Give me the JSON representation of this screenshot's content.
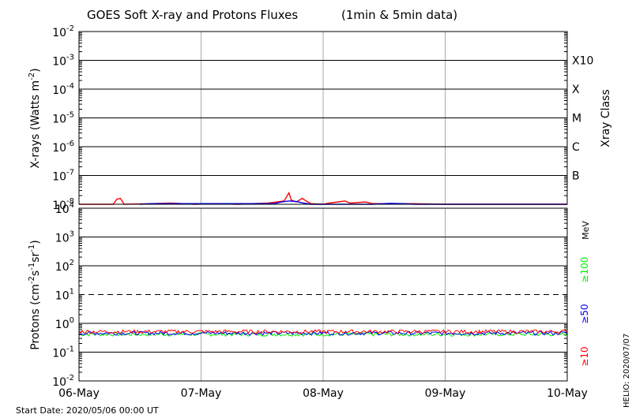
{
  "chart_data": {
    "type": "line",
    "title": "GOES Soft X-ray and Protons Fluxes",
    "subtitle": "(1min & 5min data)",
    "x_labels": [
      "06-May",
      "07-May",
      "08-May",
      "09-May",
      "10-May"
    ],
    "start_date": "Start Date: 2020/05/06 00:00 UT",
    "credit": "HELIO: 2020/07/07",
    "xray": {
      "ylabel_main": "X-rays (Watts m",
      "ylabel_sup": "-2",
      "ylabel_end": ")",
      "yscale": "log",
      "ylim": [
        1e-08,
        0.01
      ],
      "tick_base": "10",
      "tick_exponents": [
        "-2",
        "-3",
        "-4",
        "-5",
        "-6",
        "-7",
        "-8"
      ],
      "class_title": "Xray Class",
      "classes": [
        {
          "label": "X10",
          "flux": 0.001
        },
        {
          "label": "X",
          "flux": 0.0001
        },
        {
          "label": "M",
          "flux": 1e-05
        },
        {
          "label": "C",
          "flux": 1e-06
        },
        {
          "label": "B",
          "flux": 1e-07
        }
      ],
      "series": [
        {
          "color": "#ff0000",
          "points": [
            [
              0.0,
              1e-08
            ],
            [
              0.28,
              1e-08
            ],
            [
              0.31,
              1.5e-08
            ],
            [
              0.34,
              1.6e-08
            ],
            [
              0.37,
              1e-08
            ],
            [
              0.6,
              1.05e-08
            ],
            [
              0.75,
              1.1e-08
            ],
            [
              0.95,
              1e-08
            ],
            [
              1.1,
              1.05e-08
            ],
            [
              1.3,
              1e-08
            ],
            [
              1.55,
              1.1e-08
            ],
            [
              1.62,
              1.2e-08
            ],
            [
              1.68,
              1.3e-08
            ],
            [
              1.72,
              2.5e-08
            ],
            [
              1.74,
              1.4e-08
            ],
            [
              1.78,
              1.2e-08
            ],
            [
              1.83,
              1.6e-08
            ],
            [
              1.86,
              1.3e-08
            ],
            [
              1.9,
              1.05e-08
            ],
            [
              2.0,
              1e-08
            ],
            [
              2.05,
              1.1e-08
            ],
            [
              2.18,
              1.3e-08
            ],
            [
              2.22,
              1.1e-08
            ],
            [
              2.35,
              1.2e-08
            ],
            [
              2.4,
              1.05e-08
            ],
            [
              2.7,
              1.05e-08
            ],
            [
              3.0,
              1e-08
            ],
            [
              4.0,
              1e-08
            ]
          ]
        },
        {
          "color": "#0000ff",
          "points": [
            [
              0.5,
              1e-08
            ],
            [
              0.6,
              1.05e-08
            ],
            [
              1.6,
              1.05e-08
            ],
            [
              1.66,
              1.2e-08
            ],
            [
              1.72,
              1.3e-08
            ],
            [
              1.78,
              1.25e-08
            ],
            [
              1.84,
              1.1e-08
            ],
            [
              1.9,
              1e-08
            ],
            [
              2.4,
              1e-08
            ],
            [
              2.55,
              1.08e-08
            ],
            [
              2.65,
              1.05e-08
            ],
            [
              2.75,
              1e-08
            ],
            [
              4.0,
              1e-08
            ]
          ]
        }
      ]
    },
    "protons": {
      "ylabel_main": "Protons (cm",
      "ylabel_s1": "-2",
      "ylabel_mid1": "s",
      "ylabel_s2": "-1",
      "ylabel_mid2": "sr",
      "ylabel_s3": "-1",
      "ylabel_end": ")",
      "yscale": "log",
      "ylim": [
        0.01,
        10000.0
      ],
      "tick_base": "10",
      "tick_exponents": [
        "4",
        "3",
        "2",
        "1",
        "0",
        "-1",
        "-2"
      ],
      "threshold": 10,
      "unit": "MeV",
      "channels": [
        {
          "label": "≥100",
          "color": "#00ee00",
          "level": 0.42
        },
        {
          "label": "≥50",
          "color": "#0000ff",
          "level": 0.46
        },
        {
          "label": "≥10",
          "color": "#ff0000",
          "level": 0.52
        }
      ]
    }
  }
}
